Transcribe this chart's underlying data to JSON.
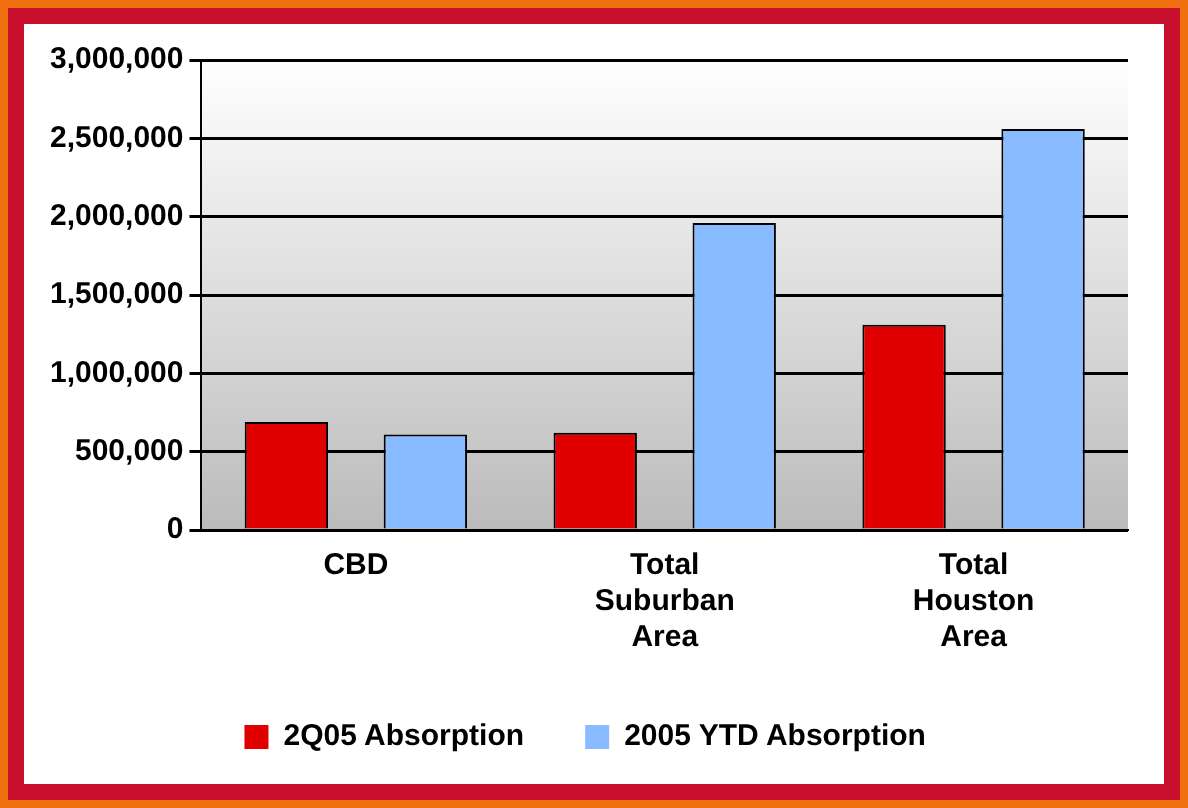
{
  "chart_data": {
    "type": "bar",
    "categories": [
      "CBD",
      "Total Suburban Area",
      "Total Houston Area"
    ],
    "series": [
      {
        "name": "2Q05 Absorption",
        "color": "#e00000",
        "values": [
          690000,
          620000,
          1310000
        ]
      },
      {
        "name": "2005 YTD Absorption",
        "color": "#88bbff",
        "values": [
          610000,
          1960000,
          2560000
        ]
      }
    ],
    "ylim": [
      0,
      3000000
    ],
    "yticks": [
      0,
      {
        "value": 500000,
        "label": "500,000"
      },
      {
        "value": 1000000,
        "label": "1,000,000"
      },
      {
        "value": 1500000,
        "label": "1,500,000"
      },
      {
        "value": 2000000,
        "label": "2,000,000"
      },
      {
        "value": 2500000,
        "label": "2,500,000"
      },
      {
        "value": 3000000,
        "label": "3,000,000"
      }
    ],
    "grid": "y",
    "legend": "bottom"
  }
}
